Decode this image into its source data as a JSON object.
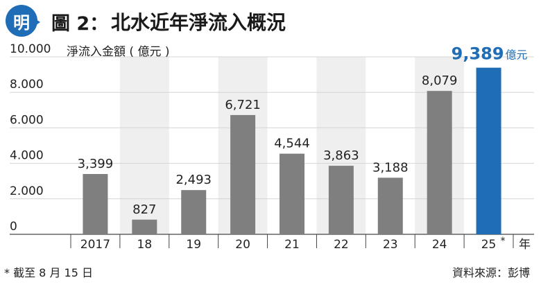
{
  "header": {
    "logo_char": "明",
    "figure_label": "圖 2：",
    "title": "北水近年淨流入概況"
  },
  "footer": {
    "note": "* 截至 8 月 15 日",
    "source": "資料來源：彭博"
  },
  "colors": {
    "bar": "#7f7f7f",
    "highlight_bar": "#1f6db6",
    "band": "#efefef",
    "grid": "#d4d4d4"
  },
  "chart_data": {
    "type": "bar",
    "ylabel": "淨流入金額 ( 億元 )",
    "xlabel": "年",
    "ylim": [
      0,
      10000
    ],
    "yticks": [
      0,
      2000,
      4000,
      6000,
      8000,
      10000
    ],
    "ytick_labels": [
      "0",
      "2.000",
      "4.000",
      "6.000",
      "8.000",
      "10.000"
    ],
    "grid": true,
    "categories": [
      "2017",
      "18",
      "19",
      "20",
      "21",
      "22",
      "23",
      "24",
      "25"
    ],
    "values": [
      3399,
      827,
      2493,
      6721,
      4544,
      3863,
      3188,
      8079,
      9389
    ],
    "value_labels": [
      "3,399",
      "827",
      "2,493",
      "6,721",
      "4,544",
      "3,863",
      "3,188",
      "8,079",
      "9,389"
    ],
    "highlight_index": 8,
    "highlight_marker": "*",
    "highlight_unit": "億元"
  }
}
